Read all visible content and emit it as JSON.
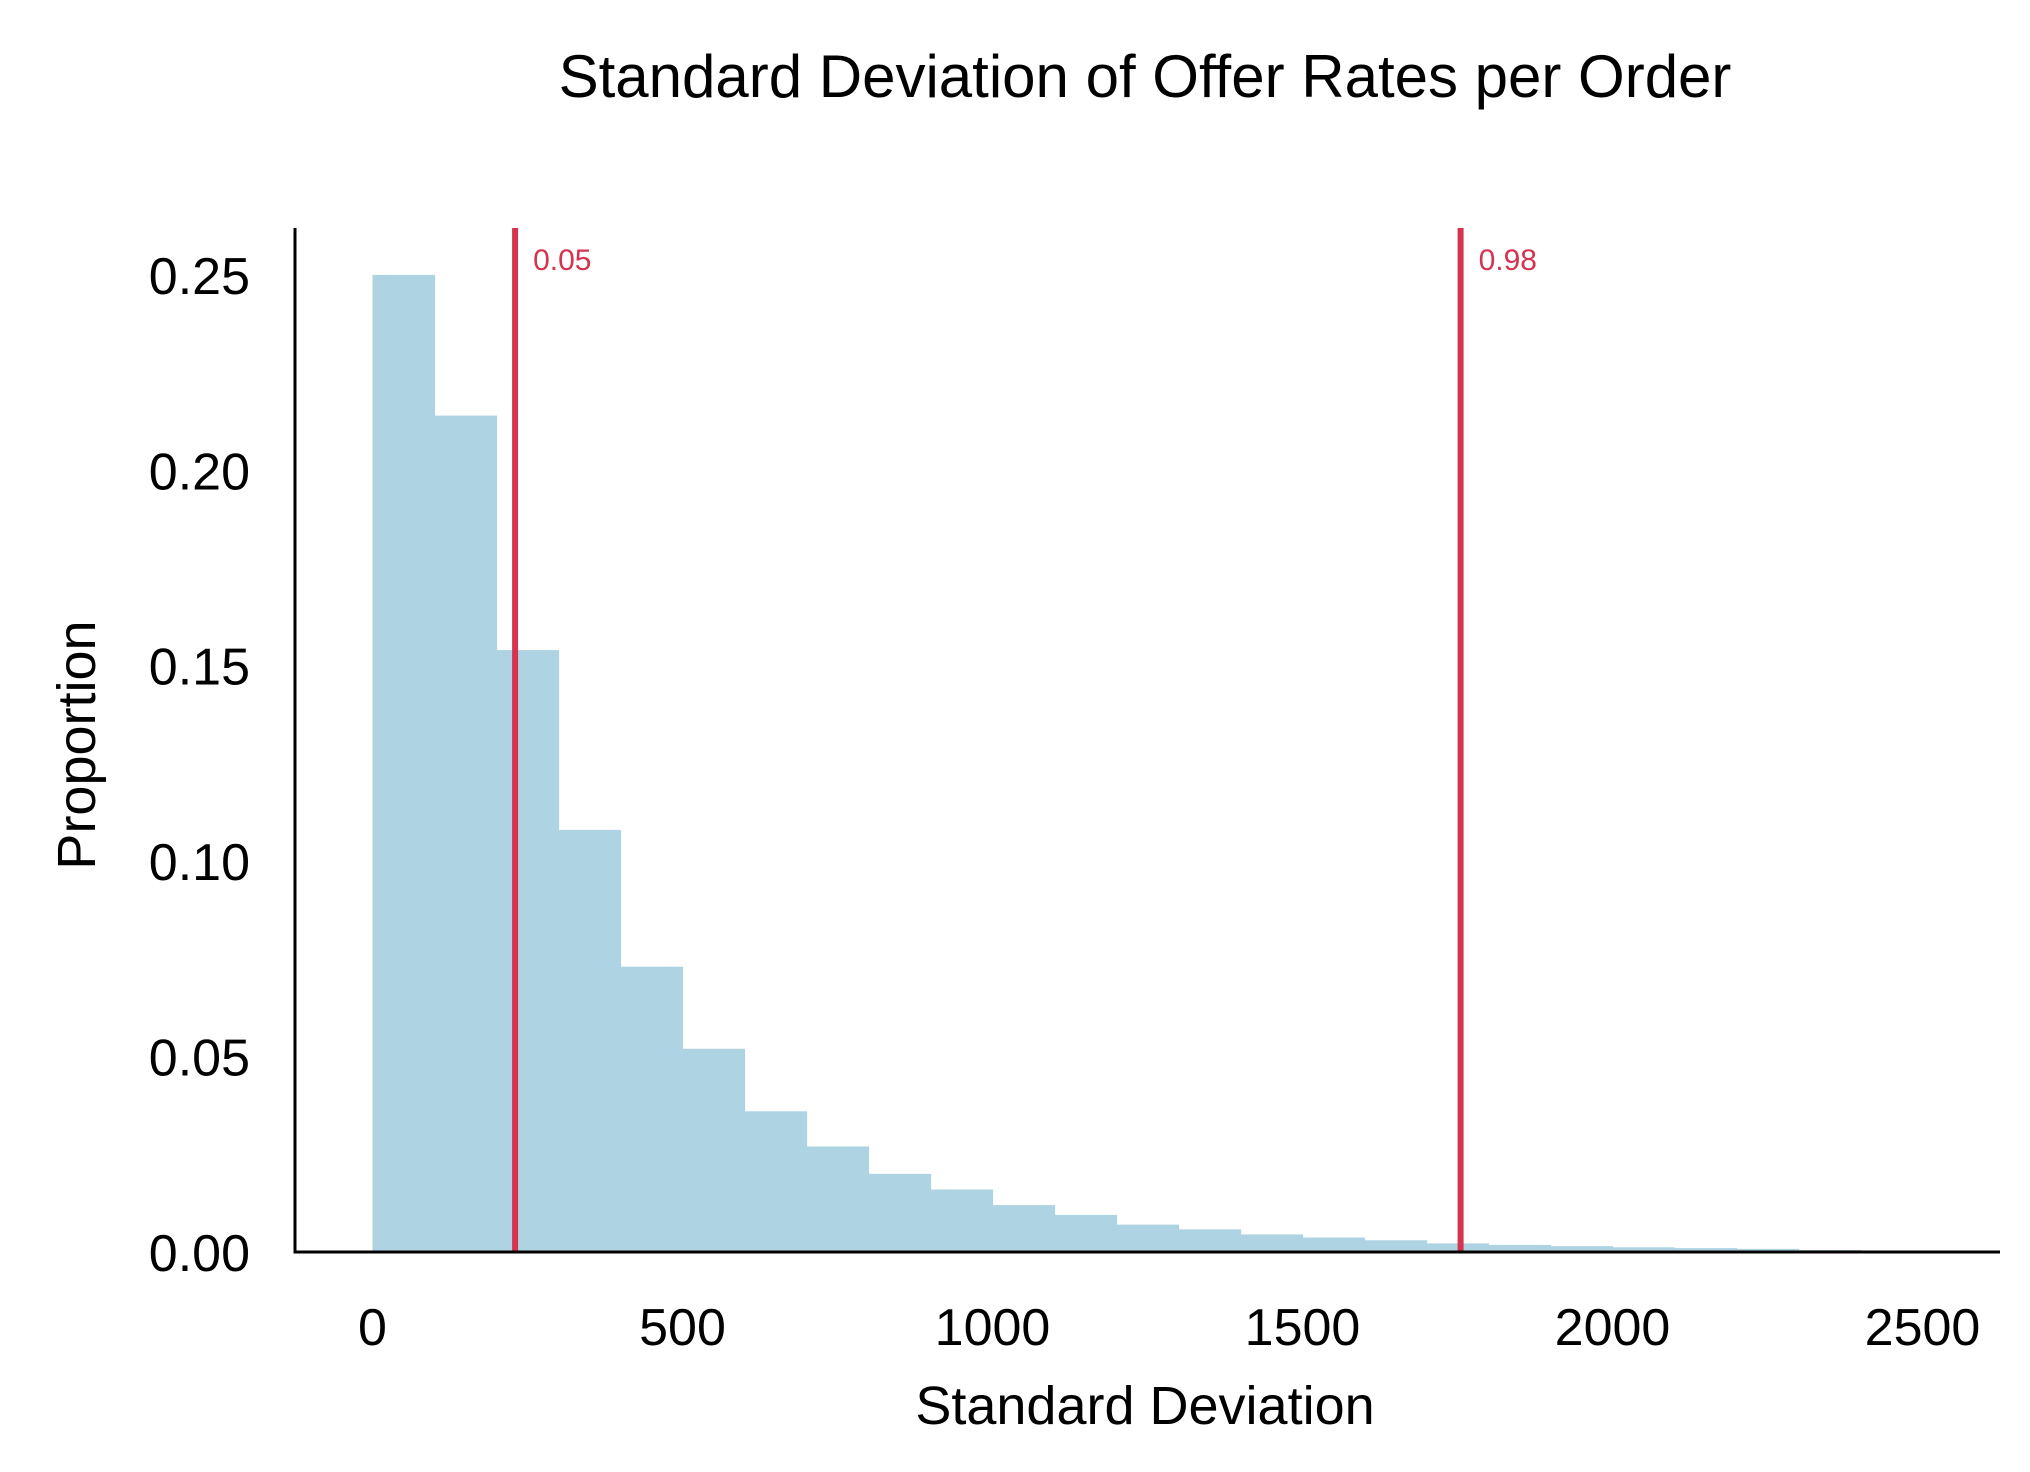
{
  "chart_data": {
    "type": "bar",
    "title": "Standard Deviation of Offer Rates per Order",
    "xlabel": "Standard Deviation",
    "ylabel": "Proportion",
    "xlim": [
      -125,
      2625
    ],
    "ylim": [
      0,
      0.262
    ],
    "x_ticks": [
      "0",
      "500",
      "1000",
      "1500",
      "2000",
      "2500"
    ],
    "x_tick_values": [
      0,
      500,
      1000,
      1500,
      2000,
      2500
    ],
    "y_ticks": [
      "0.00",
      "0.05",
      "0.10",
      "0.15",
      "0.20",
      "0.25"
    ],
    "y_tick_values": [
      0,
      0.05,
      0.1,
      0.15,
      0.2,
      0.25
    ],
    "bin_width": 100,
    "bins": [
      {
        "x0": 0,
        "value": 0.25
      },
      {
        "x0": 100,
        "value": 0.214
      },
      {
        "x0": 200,
        "value": 0.154
      },
      {
        "x0": 300,
        "value": 0.108
      },
      {
        "x0": 400,
        "value": 0.073
      },
      {
        "x0": 500,
        "value": 0.052
      },
      {
        "x0": 600,
        "value": 0.036
      },
      {
        "x0": 700,
        "value": 0.027
      },
      {
        "x0": 800,
        "value": 0.02
      },
      {
        "x0": 900,
        "value": 0.016
      },
      {
        "x0": 1000,
        "value": 0.012
      },
      {
        "x0": 1100,
        "value": 0.0095
      },
      {
        "x0": 1200,
        "value": 0.007
      },
      {
        "x0": 1300,
        "value": 0.0058
      },
      {
        "x0": 1400,
        "value": 0.0045
      },
      {
        "x0": 1500,
        "value": 0.0037
      },
      {
        "x0": 1600,
        "value": 0.003
      },
      {
        "x0": 1700,
        "value": 0.0022
      },
      {
        "x0": 1800,
        "value": 0.0018
      },
      {
        "x0": 1900,
        "value": 0.0015
      },
      {
        "x0": 2000,
        "value": 0.0012
      },
      {
        "x0": 2100,
        "value": 0.001
      },
      {
        "x0": 2200,
        "value": 0.0008
      },
      {
        "x0": 2300,
        "value": 0.0005
      }
    ],
    "vlines": [
      {
        "x": 230,
        "label": "0.05"
      },
      {
        "x": 1755,
        "label": "0.98"
      }
    ],
    "bar_color": "#aed3e3",
    "vline_color": "#d4344f",
    "grid": false,
    "legend": "none"
  }
}
